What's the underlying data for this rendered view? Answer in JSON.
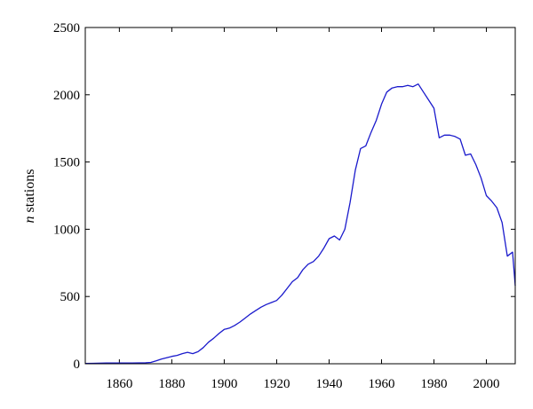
{
  "chart_data": {
    "type": "line",
    "title": "",
    "xlabel": "",
    "ylabel_italic": "n",
    "ylabel_rest": " stations",
    "xlim": [
      1847,
      2011
    ],
    "ylim": [
      0,
      2500
    ],
    "xticks": [
      1860,
      1880,
      1900,
      1920,
      1940,
      1960,
      1980,
      2000
    ],
    "yticks": [
      0,
      500,
      1000,
      1500,
      2000,
      2500
    ],
    "grid": false,
    "color": "#1a1acc",
    "series": [
      {
        "x": [
          1847,
          1850,
          1855,
          1860,
          1865,
          1870,
          1872,
          1874,
          1876,
          1878,
          1880,
          1882,
          1884,
          1886,
          1888,
          1890,
          1892,
          1894,
          1896,
          1898,
          1900,
          1902,
          1904,
          1906,
          1908,
          1910,
          1912,
          1914,
          1916,
          1918,
          1920,
          1922,
          1924,
          1926,
          1928,
          1930,
          1932,
          1934,
          1936,
          1938,
          1940,
          1942,
          1944,
          1946,
          1948,
          1950,
          1952,
          1954,
          1956,
          1958,
          1960,
          1962,
          1964,
          1966,
          1968,
          1970,
          1972,
          1974,
          1976,
          1978,
          1980,
          1982,
          1984,
          1986,
          1988,
          1990,
          1992,
          1994,
          1996,
          1998,
          2000,
          2002,
          2004,
          2006,
          2008,
          2010,
          2011
        ],
        "y": [
          2,
          3,
          5,
          6,
          6,
          7,
          10,
          22,
          35,
          45,
          55,
          62,
          75,
          85,
          75,
          90,
          120,
          160,
          190,
          225,
          255,
          265,
          285,
          310,
          340,
          370,
          395,
          420,
          440,
          455,
          470,
          510,
          560,
          610,
          640,
          700,
          740,
          760,
          800,
          860,
          930,
          950,
          920,
          1000,
          1200,
          1440,
          1600,
          1620,
          1720,
          1810,
          1930,
          2020,
          2050,
          2060,
          2060,
          2070,
          2060,
          2080,
          2020,
          1960,
          1900,
          1680,
          1700,
          1700,
          1690,
          1670,
          1550,
          1560,
          1480,
          1380,
          1250,
          1210,
          1160,
          1050,
          800,
          830,
          580
        ]
      }
    ]
  }
}
